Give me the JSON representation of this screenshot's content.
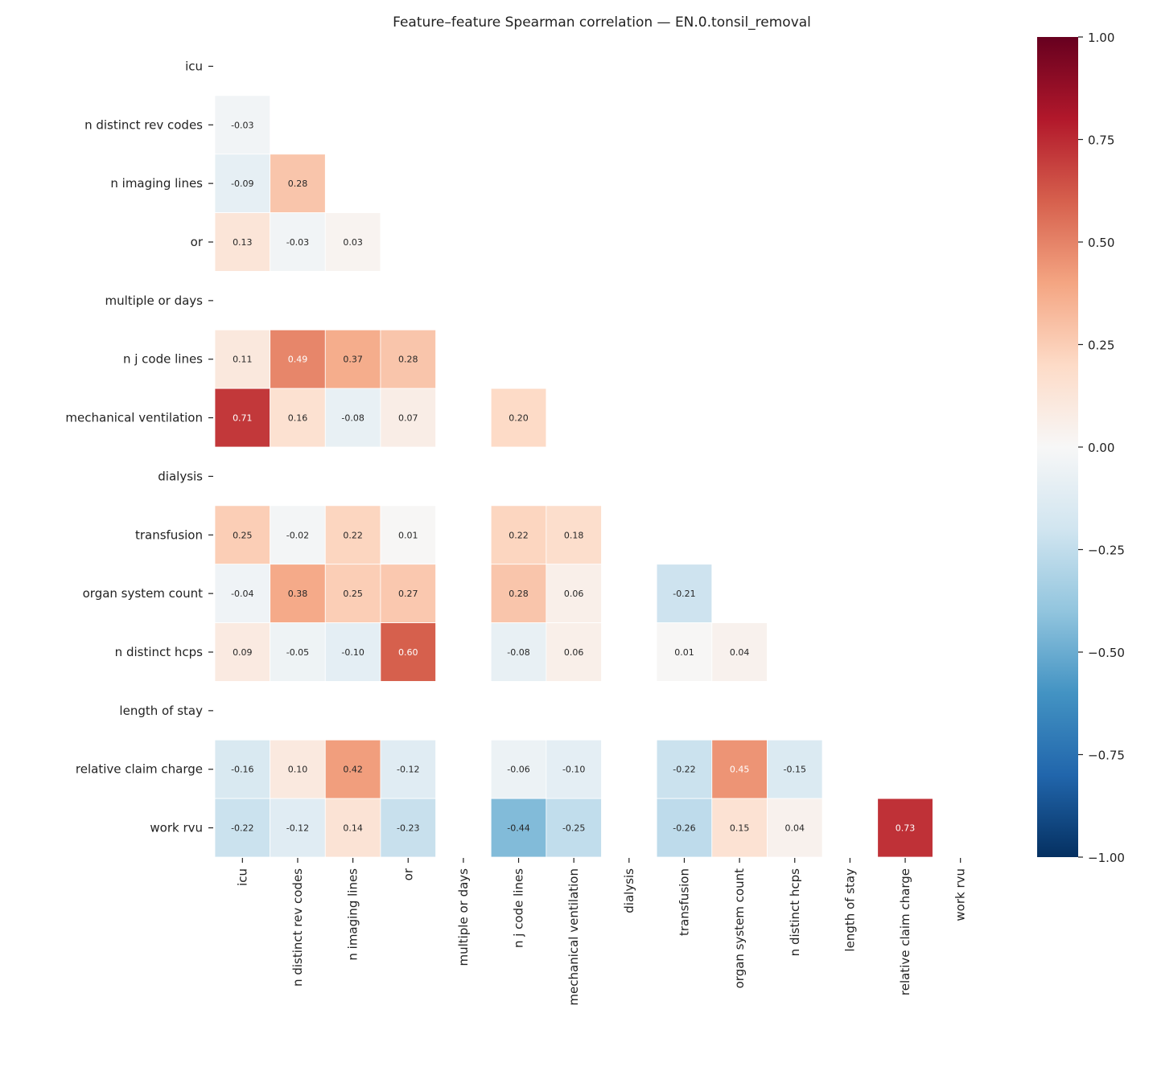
{
  "chart_data": {
    "type": "heatmap",
    "title": "Feature–feature Spearman correlation — EN.0.tonsil_removal",
    "labels": [
      "icu",
      "n distinct rev codes",
      "n imaging lines",
      "or",
      "multiple or days",
      "n j code lines",
      "mechanical ventilation",
      "dialysis",
      "transfusion",
      "organ system count",
      "n distinct hcps",
      "length of stay",
      "relative claim charge",
      "work rvu"
    ],
    "lower_triangle_values": [
      [],
      [
        -0.03
      ],
      [
        -0.09,
        0.28
      ],
      [
        0.13,
        -0.03,
        0.03
      ],
      [
        null,
        null,
        null,
        null
      ],
      [
        0.11,
        0.49,
        0.37,
        0.28,
        null
      ],
      [
        0.71,
        0.16,
        -0.08,
        0.07,
        null,
        0.2
      ],
      [
        null,
        null,
        null,
        null,
        null,
        null,
        null
      ],
      [
        0.25,
        -0.02,
        0.22,
        0.01,
        null,
        0.22,
        0.18,
        null
      ],
      [
        -0.04,
        0.38,
        0.25,
        0.27,
        null,
        0.28,
        0.06,
        null,
        -0.21
      ],
      [
        0.09,
        -0.05,
        -0.1,
        0.6,
        null,
        -0.08,
        0.06,
        null,
        0.01,
        0.04
      ],
      [
        null,
        null,
        null,
        null,
        null,
        null,
        null,
        null,
        null,
        null,
        null
      ],
      [
        -0.16,
        0.1,
        0.42,
        -0.12,
        null,
        -0.06,
        -0.1,
        null,
        -0.22,
        0.45,
        -0.15,
        null
      ],
      [
        -0.22,
        -0.12,
        0.14,
        -0.23,
        null,
        -0.44,
        -0.25,
        null,
        -0.26,
        0.15,
        0.04,
        null,
        0.73
      ]
    ],
    "colormap": "RdBu_r",
    "vmin": -1,
    "vmax": 1,
    "colorbar_ticks": [
      "1.00",
      "0.75",
      "0.50",
      "0.25",
      "0.00",
      "−0.25",
      "−0.50",
      "−0.75",
      "−1.00"
    ],
    "colorbar_tick_values": [
      1,
      0.75,
      0.5,
      0.25,
      0,
      -0.25,
      -0.5,
      -0.75,
      -1
    ],
    "annotation_format": "0.00"
  }
}
